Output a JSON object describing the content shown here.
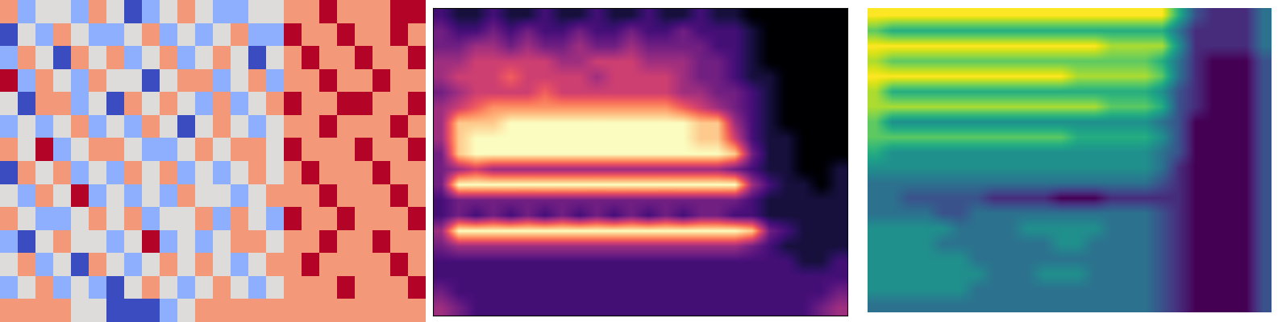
{
  "chart_data": [
    {
      "type": "heatmap",
      "color": "coolwarm",
      "tick_labels": false,
      "cells": [
        [
          1,
          -1,
          0,
          0,
          -1,
          1,
          0,
          -2,
          -1,
          0,
          1,
          0,
          -1,
          -1,
          0,
          0,
          1,
          1,
          2,
          1,
          1,
          1,
          2,
          2
        ],
        [
          -2,
          0,
          -1,
          1,
          0,
          -1,
          -1,
          0,
          1,
          -1,
          0,
          -1,
          0,
          1,
          -1,
          -1,
          2,
          1,
          1,
          2,
          1,
          1,
          2,
          1
        ],
        [
          -1,
          1,
          0,
          -2,
          1,
          0,
          1,
          -1,
          0,
          1,
          -1,
          0,
          1,
          0,
          -2,
          0,
          1,
          2,
          1,
          1,
          2,
          1,
          1,
          2
        ],
        [
          2,
          -1,
          1,
          0,
          -1,
          1,
          0,
          0,
          -2,
          0,
          1,
          1,
          -1,
          0,
          1,
          -1,
          1,
          1,
          2,
          1,
          1,
          2,
          1,
          1
        ],
        [
          0,
          -2,
          1,
          1,
          -1,
          0,
          -2,
          1,
          0,
          1,
          0,
          -1,
          1,
          -1,
          0,
          1,
          2,
          1,
          1,
          2,
          2,
          1,
          1,
          2
        ],
        [
          -1,
          0,
          -1,
          0,
          1,
          -1,
          0,
          -1,
          1,
          0,
          -2,
          0,
          1,
          0,
          -1,
          0,
          1,
          1,
          2,
          1,
          1,
          1,
          2,
          1
        ],
        [
          1,
          0,
          2,
          -1,
          0,
          1,
          1,
          0,
          -1,
          -1,
          0,
          1,
          0,
          1,
          1,
          0,
          2,
          1,
          1,
          1,
          2,
          1,
          1,
          2
        ],
        [
          -2,
          1,
          0,
          1,
          -1,
          0,
          -1,
          1,
          0,
          1,
          -1,
          0,
          -1,
          0,
          1,
          0,
          1,
          2,
          1,
          1,
          1,
          2,
          1,
          1
        ],
        [
          0,
          -1,
          1,
          0,
          2,
          -1,
          0,
          -1,
          0,
          -1,
          1,
          0,
          0,
          -1,
          0,
          1,
          1,
          1,
          2,
          1,
          1,
          1,
          2,
          1
        ],
        [
          1,
          0,
          -1,
          -1,
          0,
          1,
          0,
          1,
          -1,
          0,
          0,
          1,
          -1,
          1,
          0,
          -1,
          2,
          1,
          1,
          2,
          1,
          1,
          1,
          2
        ],
        [
          -1,
          -2,
          0,
          1,
          0,
          0,
          -1,
          0,
          2,
          -1,
          0,
          -1,
          0,
          1,
          1,
          0,
          1,
          1,
          2,
          1,
          1,
          2,
          1,
          1
        ],
        [
          0,
          1,
          -1,
          0,
          -2,
          1,
          0,
          -1,
          0,
          1,
          0,
          1,
          0,
          -1,
          0,
          1,
          1,
          2,
          1,
          1,
          1,
          1,
          2,
          1
        ],
        [
          -1,
          0,
          1,
          -1,
          0,
          -1,
          -2,
          0,
          1,
          0,
          -1,
          0,
          1,
          0,
          -1,
          0,
          1,
          1,
          1,
          2,
          1,
          1,
          1,
          2
        ],
        [
          1,
          1,
          1,
          1,
          0,
          0,
          -2,
          -2,
          -2,
          -1,
          0,
          1,
          1,
          1,
          1,
          1,
          1,
          1,
          1,
          1,
          1,
          1,
          1,
          1
        ]
      ]
    },
    {
      "type": "heatmap",
      "color": "magma",
      "tick_labels": false,
      "cells": [
        [
          2,
          1,
          1,
          2,
          1,
          1,
          2,
          1,
          1,
          2,
          1,
          1,
          2,
          1,
          1,
          2,
          1,
          1,
          0,
          0,
          0,
          0,
          0,
          0
        ],
        [
          3,
          2,
          2,
          3,
          2,
          3,
          2,
          2,
          3,
          2,
          2,
          3,
          2,
          2,
          3,
          2,
          2,
          2,
          1,
          0,
          0,
          0,
          0,
          0
        ],
        [
          3,
          3,
          4,
          4,
          3,
          4,
          3,
          3,
          4,
          3,
          3,
          4,
          3,
          3,
          3,
          3,
          2,
          2,
          1,
          0,
          0,
          0,
          0,
          0
        ],
        [
          4,
          4,
          5,
          5,
          5,
          5,
          5,
          4,
          4,
          5,
          5,
          5,
          4,
          4,
          4,
          3,
          3,
          2,
          1,
          0,
          0,
          0,
          0,
          0
        ],
        [
          4,
          5,
          5,
          5,
          6,
          5,
          5,
          5,
          5,
          4,
          5,
          5,
          5,
          5,
          4,
          3,
          3,
          2,
          1,
          1,
          0,
          0,
          0,
          0
        ],
        [
          3,
          4,
          5,
          5,
          5,
          5,
          6,
          5,
          5,
          5,
          5,
          5,
          5,
          5,
          4,
          4,
          3,
          3,
          2,
          1,
          0,
          0,
          0,
          0
        ],
        [
          4,
          5,
          6,
          7,
          7,
          7,
          7,
          7,
          7,
          7,
          7,
          7,
          7,
          7,
          6,
          5,
          4,
          3,
          2,
          1,
          0,
          0,
          0,
          0
        ],
        [
          4,
          8,
          8,
          8,
          9,
          9,
          9,
          9,
          9,
          9,
          9,
          9,
          9,
          9,
          9,
          8,
          8,
          4,
          2,
          1,
          0,
          0,
          0,
          0
        ],
        [
          4,
          8,
          9,
          9,
          9,
          9,
          9,
          9,
          9,
          9,
          9,
          9,
          9,
          9,
          9,
          8,
          8,
          5,
          2,
          1,
          1,
          0,
          0,
          0
        ],
        [
          3,
          8,
          9,
          9,
          9,
          9,
          9,
          9,
          9,
          9,
          9,
          9,
          9,
          9,
          9,
          9,
          9,
          8,
          3,
          1,
          1,
          0,
          0,
          0
        ],
        [
          3,
          4,
          5,
          4,
          4,
          4,
          4,
          4,
          4,
          4,
          4,
          4,
          4,
          4,
          4,
          4,
          4,
          3,
          2,
          1,
          1,
          0,
          0,
          1
        ],
        [
          3,
          9,
          9,
          9,
          9,
          9,
          9,
          9,
          9,
          9,
          9,
          9,
          9,
          9,
          9,
          9,
          9,
          9,
          4,
          2,
          1,
          1,
          0,
          1
        ],
        [
          2,
          3,
          3,
          3,
          3,
          3,
          3,
          3,
          3,
          3,
          3,
          3,
          3,
          3,
          3,
          3,
          3,
          3,
          2,
          1,
          1,
          1,
          1,
          1
        ],
        [
          2,
          3,
          2,
          3,
          2,
          3,
          2,
          3,
          2,
          3,
          2,
          3,
          2,
          3,
          2,
          3,
          3,
          2,
          2,
          1,
          1,
          1,
          1,
          1
        ],
        [
          4,
          9,
          9,
          9,
          9,
          9,
          9,
          9,
          9,
          9,
          9,
          9,
          9,
          9,
          9,
          9,
          9,
          9,
          8,
          3,
          2,
          1,
          1,
          1
        ],
        [
          3,
          4,
          4,
          4,
          4,
          4,
          4,
          4,
          4,
          4,
          4,
          4,
          4,
          4,
          4,
          4,
          4,
          4,
          3,
          2,
          1,
          1,
          1,
          1
        ],
        [
          2,
          2,
          2,
          2,
          2,
          2,
          2,
          2,
          2,
          2,
          2,
          2,
          2,
          2,
          2,
          2,
          2,
          2,
          2,
          2,
          2,
          1,
          1,
          2
        ],
        [
          2,
          2,
          2,
          2,
          2,
          2,
          2,
          2,
          2,
          2,
          2,
          2,
          2,
          2,
          2,
          2,
          2,
          2,
          2,
          2,
          2,
          2,
          2,
          2
        ],
        [
          3,
          2,
          2,
          2,
          2,
          2,
          2,
          2,
          2,
          2,
          2,
          2,
          2,
          2,
          2,
          2,
          2,
          2,
          2,
          2,
          2,
          2,
          2,
          3
        ],
        [
          4,
          3,
          2,
          2,
          2,
          2,
          2,
          2,
          2,
          2,
          2,
          2,
          2,
          2,
          2,
          2,
          2,
          2,
          2,
          2,
          2,
          2,
          3,
          4
        ]
      ]
    },
    {
      "type": "heatmap",
      "color": "viridis",
      "tick_labels": false,
      "cells": [
        [
          9,
          9,
          9,
          9,
          9,
          9,
          9,
          9,
          9,
          9,
          9,
          9,
          9,
          9,
          9,
          9,
          9,
          9,
          6,
          3,
          2,
          2,
          2,
          4
        ],
        [
          7,
          6,
          6,
          6,
          6,
          6,
          6,
          6,
          6,
          6,
          6,
          6,
          6,
          6,
          6,
          6,
          6,
          6,
          4,
          2,
          2,
          2,
          2,
          4
        ],
        [
          9,
          9,
          9,
          9,
          9,
          9,
          9,
          9,
          9,
          9,
          9,
          9,
          9,
          9,
          8,
          8,
          8,
          8,
          5,
          2,
          2,
          2,
          2,
          4
        ],
        [
          8,
          7,
          7,
          7,
          7,
          7,
          7,
          7,
          7,
          7,
          7,
          7,
          7,
          7,
          7,
          7,
          7,
          6,
          4,
          2,
          1,
          1,
          1,
          3
        ],
        [
          9,
          9,
          9,
          9,
          9,
          9,
          9,
          9,
          9,
          9,
          9,
          9,
          8,
          8,
          8,
          8,
          8,
          7,
          4,
          2,
          1,
          1,
          1,
          3
        ],
        [
          8,
          6,
          6,
          6,
          6,
          6,
          6,
          6,
          6,
          6,
          6,
          6,
          6,
          6,
          6,
          6,
          6,
          5,
          3,
          2,
          1,
          1,
          1,
          3
        ],
        [
          8,
          8,
          8,
          8,
          8,
          8,
          8,
          8,
          8,
          8,
          8,
          8,
          8,
          8,
          7,
          7,
          7,
          6,
          3,
          2,
          1,
          1,
          1,
          3
        ],
        [
          7,
          5,
          5,
          5,
          5,
          5,
          5,
          5,
          5,
          5,
          5,
          5,
          5,
          5,
          5,
          5,
          5,
          4,
          3,
          1,
          1,
          1,
          1,
          3
        ],
        [
          7,
          7,
          7,
          7,
          7,
          7,
          7,
          7,
          7,
          7,
          7,
          7,
          6,
          6,
          6,
          6,
          6,
          5,
          3,
          1,
          1,
          1,
          1,
          3
        ],
        [
          6,
          5,
          5,
          5,
          5,
          5,
          5,
          5,
          5,
          5,
          5,
          5,
          5,
          5,
          5,
          5,
          5,
          4,
          3,
          1,
          1,
          1,
          1,
          3
        ],
        [
          5,
          5,
          5,
          5,
          5,
          5,
          5,
          5,
          5,
          5,
          5,
          5,
          5,
          5,
          5,
          5,
          5,
          4,
          2,
          1,
          1,
          1,
          1,
          3
        ],
        [
          4,
          4,
          4,
          4,
          4,
          4,
          4,
          4,
          4,
          4,
          4,
          4,
          4,
          4,
          4,
          4,
          4,
          3,
          2,
          1,
          1,
          1,
          1,
          3
        ],
        [
          4,
          4,
          3,
          3,
          3,
          3,
          3,
          2,
          2,
          2,
          2,
          1,
          1,
          1,
          2,
          2,
          2,
          2,
          2,
          1,
          1,
          1,
          1,
          3
        ],
        [
          4,
          4,
          4,
          4,
          3,
          3,
          4,
          4,
          4,
          4,
          4,
          4,
          4,
          4,
          4,
          4,
          4,
          3,
          2,
          1,
          1,
          1,
          1,
          3
        ],
        [
          5,
          5,
          5,
          5,
          5,
          4,
          4,
          4,
          4,
          5,
          5,
          5,
          5,
          5,
          4,
          4,
          4,
          3,
          2,
          1,
          1,
          1,
          1,
          3
        ],
        [
          5,
          5,
          5,
          5,
          4,
          4,
          4,
          4,
          4,
          4,
          4,
          5,
          5,
          4,
          4,
          4,
          4,
          3,
          2,
          1,
          1,
          1,
          1,
          3
        ],
        [
          5,
          5,
          5,
          5,
          5,
          5,
          4,
          4,
          4,
          4,
          4,
          4,
          4,
          4,
          4,
          4,
          4,
          3,
          2,
          1,
          1,
          1,
          1,
          3
        ],
        [
          5,
          5,
          5,
          5,
          5,
          5,
          5,
          4,
          4,
          4,
          5,
          5,
          5,
          4,
          4,
          4,
          4,
          3,
          2,
          1,
          1,
          1,
          1,
          3
        ],
        [
          5,
          5,
          5,
          5,
          5,
          5,
          4,
          4,
          4,
          4,
          4,
          4,
          4,
          4,
          4,
          4,
          4,
          3,
          2,
          1,
          1,
          1,
          1,
          3
        ],
        [
          4,
          4,
          4,
          4,
          4,
          4,
          4,
          4,
          4,
          4,
          4,
          4,
          4,
          4,
          4,
          4,
          4,
          3,
          2,
          1,
          1,
          1,
          1,
          3
        ]
      ]
    }
  ]
}
